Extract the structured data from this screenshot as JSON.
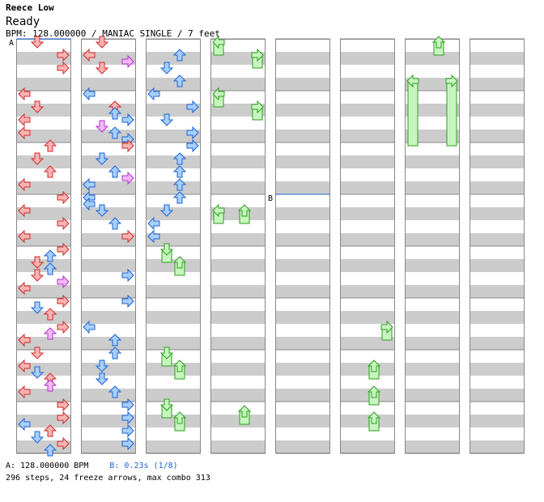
{
  "header": {
    "artist": "Reece Low",
    "title": "Ready",
    "info": "BPM: 128.000000 / MANIAC SINGLE / 7 feet"
  },
  "footer": {
    "bpm_a": "A: 128.000000 BPM",
    "bpm_b": "B: 0.23s (1/8)",
    "stats": "296 steps, 24 freeze arrows, max combo 313"
  },
  "markers": [
    {
      "label": "A",
      "column": 0,
      "beat": 0
    },
    {
      "label": "B",
      "column": 4,
      "beat": 12
    }
  ],
  "colors": {
    "quarter": "#f8b4b4",
    "quarter_stroke": "#d12b2b",
    "eighth": "#a8cffa",
    "eighth_stroke": "#1d63d6",
    "sixteenth": "#f3b9f5",
    "sixteenth_stroke": "#b32fd0",
    "freeze": "#c7f5bf",
    "freeze_stroke": "#2d9e1f",
    "band": "#cccccc"
  },
  "chart_data": {
    "type": "step-chart",
    "columns": 8,
    "measures_per_column": 8,
    "beats_per_measure": 4,
    "lanes": [
      "left",
      "down",
      "up",
      "right"
    ],
    "notes": [
      [
        0,
        0,
        1,
        "q"
      ],
      [
        0,
        1,
        3,
        "q"
      ],
      [
        0,
        2,
        3,
        "q"
      ],
      [
        0,
        4,
        0,
        "q"
      ],
      [
        0,
        5,
        1,
        "q"
      ],
      [
        0,
        6,
        0,
        "q"
      ],
      [
        0,
        7,
        0,
        "q"
      ],
      [
        0,
        8,
        2,
        "q"
      ],
      [
        0,
        9,
        1,
        "q"
      ],
      [
        0,
        10,
        2,
        "q"
      ],
      [
        0,
        11,
        0,
        "q"
      ],
      [
        0,
        12,
        3,
        "q"
      ],
      [
        0,
        13,
        0,
        "q"
      ],
      [
        0,
        14,
        3,
        "q"
      ],
      [
        0,
        15,
        0,
        "q"
      ],
      [
        0,
        16,
        3,
        "q"
      ],
      [
        0,
        16.5,
        2,
        "e"
      ],
      [
        0,
        17,
        1,
        "q"
      ],
      [
        0,
        17.5,
        2,
        "e"
      ],
      [
        0,
        18,
        1,
        "q"
      ],
      [
        0,
        18.5,
        3,
        "s"
      ],
      [
        0,
        19,
        0,
        "q"
      ],
      [
        0,
        20,
        3,
        "q"
      ],
      [
        0,
        20.5,
        1,
        "e"
      ],
      [
        0,
        21,
        2,
        "q"
      ],
      [
        0,
        22,
        3,
        "q"
      ],
      [
        0,
        22.5,
        2,
        "s"
      ],
      [
        0,
        23,
        0,
        "q"
      ],
      [
        0,
        24,
        1,
        "q"
      ],
      [
        0,
        25,
        0,
        "q"
      ],
      [
        0,
        25.5,
        1,
        "e"
      ],
      [
        0,
        26,
        2,
        "q"
      ],
      [
        0,
        26.5,
        2,
        "s"
      ],
      [
        0,
        27,
        0,
        "q"
      ],
      [
        0,
        28,
        3,
        "q"
      ],
      [
        0,
        29,
        3,
        "q"
      ],
      [
        0,
        29.5,
        0,
        "e"
      ],
      [
        0,
        30,
        2,
        "q"
      ],
      [
        0,
        30.5,
        1,
        "e"
      ],
      [
        0,
        31,
        3,
        "q"
      ],
      [
        0,
        31.5,
        2,
        "e"
      ],
      [
        1,
        0,
        1,
        "q"
      ],
      [
        1,
        1,
        0,
        "q"
      ],
      [
        1,
        1.5,
        3,
        "s"
      ],
      [
        1,
        2,
        1,
        "q"
      ],
      [
        1,
        4,
        0,
        "e"
      ],
      [
        1,
        5,
        2,
        "q"
      ],
      [
        1,
        5.5,
        2,
        "e"
      ],
      [
        1,
        6,
        3,
        "e"
      ],
      [
        1,
        6.5,
        1,
        "s"
      ],
      [
        1,
        7,
        2,
        "e"
      ],
      [
        1,
        7.5,
        3,
        "e"
      ],
      [
        1,
        8,
        3,
        "q"
      ],
      [
        1,
        9,
        1,
        "e"
      ],
      [
        1,
        10,
        2,
        "e"
      ],
      [
        1,
        10.5,
        3,
        "s"
      ],
      [
        1,
        11,
        0,
        "e"
      ],
      [
        1,
        12,
        0,
        "e"
      ],
      [
        1,
        12.5,
        0,
        "e"
      ],
      [
        1,
        13,
        1,
        "e"
      ],
      [
        1,
        14,
        2,
        "e"
      ],
      [
        1,
        15,
        3,
        "q"
      ],
      [
        1,
        18,
        3,
        "e"
      ],
      [
        1,
        20,
        3,
        "e"
      ],
      [
        1,
        22,
        0,
        "e"
      ],
      [
        1,
        23,
        2,
        "e"
      ],
      [
        1,
        24,
        2,
        "e"
      ],
      [
        1,
        25,
        1,
        "e"
      ],
      [
        1,
        26,
        1,
        "e"
      ],
      [
        1,
        27,
        2,
        "e"
      ],
      [
        1,
        28,
        3,
        "e"
      ],
      [
        1,
        29,
        3,
        "e"
      ],
      [
        1,
        30,
        3,
        "e"
      ],
      [
        1,
        31,
        3,
        "e"
      ],
      [
        2,
        1,
        2,
        "e"
      ],
      [
        2,
        2,
        1,
        "e"
      ],
      [
        2,
        3,
        2,
        "e"
      ],
      [
        2,
        4,
        0,
        "e"
      ],
      [
        2,
        5,
        3,
        "e"
      ],
      [
        2,
        6,
        1,
        "e"
      ],
      [
        2,
        7,
        3,
        "e"
      ],
      [
        2,
        8,
        3,
        "e"
      ],
      [
        2,
        9,
        2,
        "e"
      ],
      [
        2,
        10,
        2,
        "e"
      ],
      [
        2,
        11,
        2,
        "e"
      ],
      [
        2,
        12,
        2,
        "e"
      ],
      [
        2,
        13,
        1,
        "e"
      ],
      [
        2,
        14,
        0,
        "e"
      ],
      [
        2,
        15,
        0,
        "e"
      ]
    ],
    "freezes": [
      [
        2,
        16,
        1,
        17
      ],
      [
        2,
        17,
        2,
        18
      ],
      [
        2,
        24,
        1,
        25
      ],
      [
        2,
        25,
        2,
        26
      ],
      [
        2,
        28,
        1,
        29
      ],
      [
        2,
        29,
        2,
        30
      ],
      [
        3,
        0,
        0,
        1
      ],
      [
        3,
        1,
        3,
        2
      ],
      [
        3,
        4,
        0,
        5
      ],
      [
        3,
        5,
        3,
        6
      ],
      [
        3,
        13,
        0,
        14
      ],
      [
        3,
        13,
        2,
        14
      ],
      [
        3,
        28.5,
        2,
        29.5
      ],
      [
        5,
        22,
        3,
        23
      ],
      [
        5,
        25,
        2,
        26
      ],
      [
        5,
        27,
        2,
        28
      ],
      [
        5,
        29,
        2,
        30
      ],
      [
        6,
        0,
        2,
        1
      ],
      [
        6,
        3,
        0,
        8
      ],
      [
        6,
        3,
        3,
        8
      ]
    ]
  }
}
